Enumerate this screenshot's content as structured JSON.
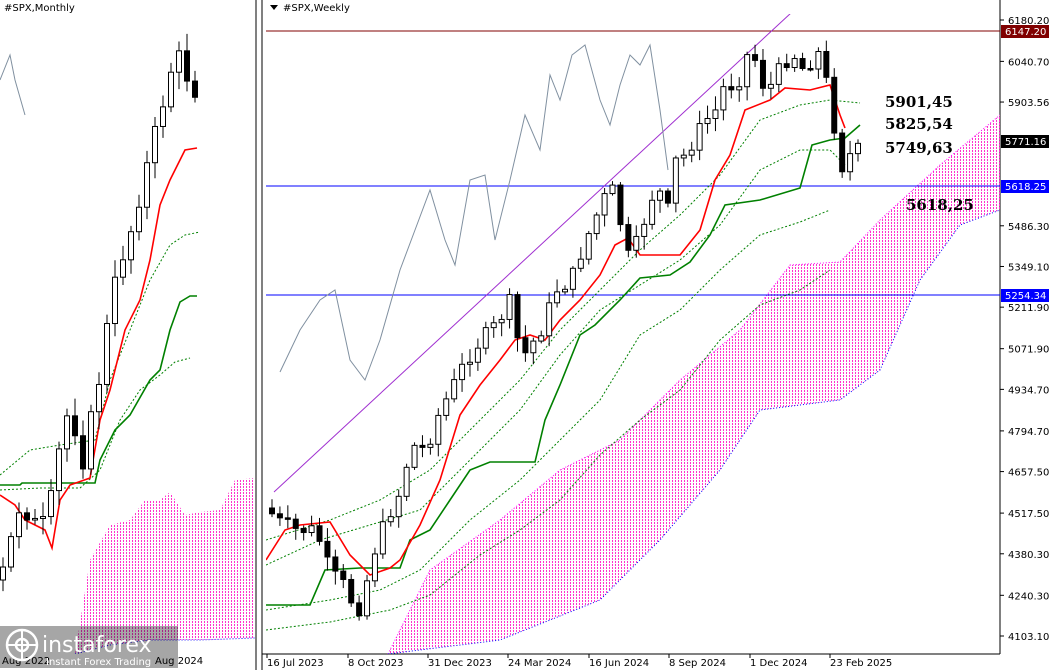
{
  "left_panel": {
    "title": "#SPX,Monthly",
    "bottom_left_date": "Aug 2022",
    "bottom_right_date": "Aug 2024"
  },
  "right_panel": {
    "title": "#SPX,Weekly"
  },
  "watermark": {
    "brand": "instaforex",
    "tagline": "Instant Forex Trading"
  },
  "annotations": [
    "5901,45",
    "5825,54",
    "5749,63",
    "5618,25"
  ],
  "price_tags": {
    "top": "6147.20",
    "current": "5771.16",
    "line_upper": "5618.25",
    "line_lower": "5254.34"
  },
  "colors": {
    "candle_up": "#ffffff",
    "candle_down": "#000000",
    "tenkan": "#ff0000",
    "kijun": "#008000",
    "cloud": "#ff00ff",
    "chikou": "#8090a0",
    "trendline": "#a030d0",
    "hline": "#0000ff",
    "top_line": "#800000"
  },
  "chart_data": [
    {
      "type": "candlestick",
      "title": "#SPX,Monthly",
      "x_ticks": [
        "Aug 2022",
        "Aug 2024"
      ],
      "indicators": [
        "Tenkan-sen",
        "Kijun-sen",
        "Ichimoku cloud",
        "Chikou span"
      ]
    },
    {
      "type": "candlestick",
      "title": "#SPX,Weekly",
      "y_ticks": [
        "6180.20",
        "6040.70",
        "5903.56",
        "5486.30",
        "5349.10",
        "5211.90",
        "5071.90",
        "4934.70",
        "4794.70",
        "4657.50",
        "4517.50",
        "4380.30",
        "4240.30",
        "4103.10"
      ],
      "ylim": [
        4103.1,
        6180.2
      ],
      "x_ticks": [
        "16 Jul 2023",
        "8 Oct 2023",
        "31 Dec 2023",
        "24 Mar 2024",
        "16 Jun 2024",
        "8 Sep 2024",
        "1 Dec 2024",
        "23 Feb 2025"
      ],
      "horizontal_levels": [
        6147.2,
        5618.25,
        5254.34
      ],
      "last_price": 5771.16,
      "indicators": [
        "Tenkan-sen",
        "Kijun-sen",
        "Ichimoku cloud",
        "Chikou span"
      ]
    }
  ]
}
